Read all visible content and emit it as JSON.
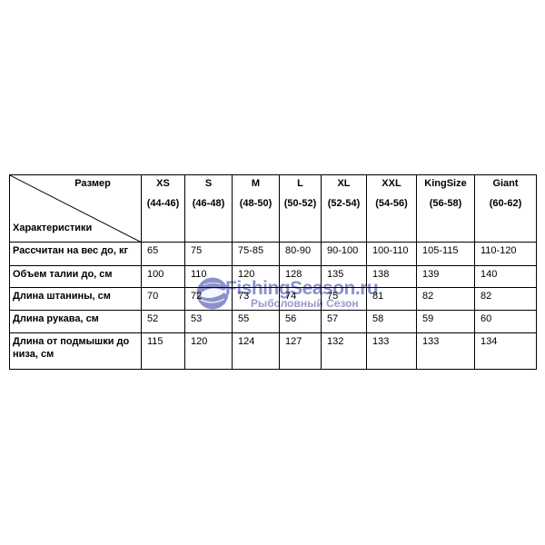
{
  "watermark": {
    "brand": "FishingSeason.ru",
    "tagline": "Рыболовный Сезон",
    "color": "#7e82c6"
  },
  "chart_data": {
    "type": "table",
    "corner": {
      "top": "Размер",
      "bottom": "Характеристики"
    },
    "columns": [
      {
        "label": "XS",
        "range": "(44-46)"
      },
      {
        "label": "S",
        "range": "(46-48)"
      },
      {
        "label": "M",
        "range": "(48-50)"
      },
      {
        "label": "L",
        "range": "(50-52)"
      },
      {
        "label": "XL",
        "range": "(52-54)"
      },
      {
        "label": "XXL",
        "range": "(54-56)"
      },
      {
        "label": "KingSize",
        "range": "(56-58)"
      },
      {
        "label": "Giant",
        "range": "(60-62)"
      }
    ],
    "rows": [
      {
        "label": "Рассчитан на вес до, кг",
        "values": [
          "65",
          "75",
          "75-85",
          "80-90",
          "90-100",
          "100-110",
          "105-115",
          "110-120"
        ]
      },
      {
        "label": "Объем талии до, см",
        "values": [
          "100",
          "110",
          "120",
          "128",
          "135",
          "138",
          "139",
          "140"
        ]
      },
      {
        "label": "Длина штанины, см",
        "values": [
          "70",
          "72",
          "73",
          "74",
          "75",
          "81",
          "82",
          "82"
        ]
      },
      {
        "label": "Длина рукава, см",
        "values": [
          "52",
          "53",
          "55",
          "56",
          "57",
          "58",
          "59",
          "60"
        ]
      },
      {
        "label": "Длина от подмышки до низа, см",
        "values": [
          "115",
          "120",
          "124",
          "127",
          "132",
          "133",
          "133",
          "134"
        ]
      }
    ]
  }
}
